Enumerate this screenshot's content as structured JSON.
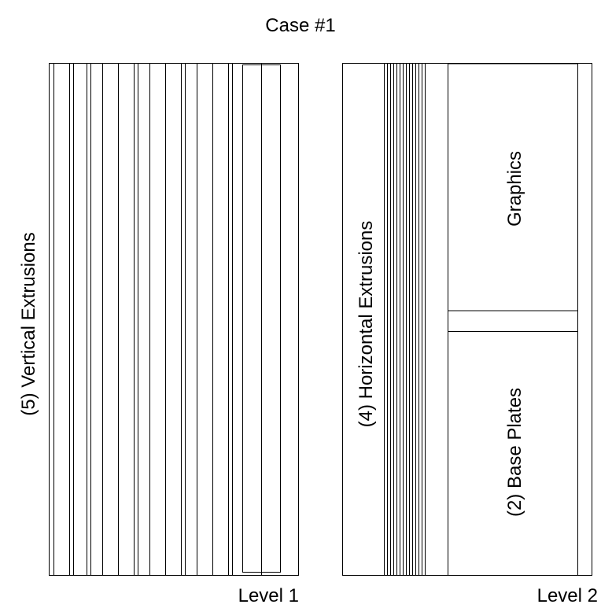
{
  "title": "Case #1",
  "level1": {
    "label": "Level 1",
    "region": "(5) Vertical Extrusions"
  },
  "level2": {
    "label": "Level 2",
    "extrusions": "(4) Horizontal Extrusions",
    "graphics": "Graphics",
    "base_plates": "(2) Base Plates"
  }
}
